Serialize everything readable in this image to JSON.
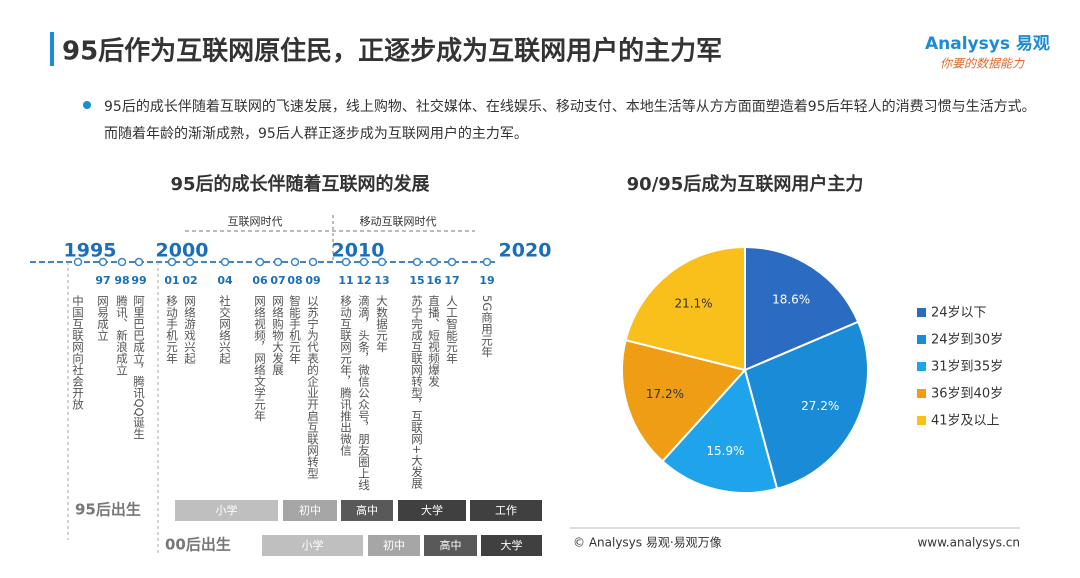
{
  "header": {
    "title": "95后作为互联网原住民，正逐步成为互联网用户的主力军",
    "logo": "Analysys 易观",
    "logo_tagline": "你要的数据能力"
  },
  "bullet": "95后的成长伴随着互联网的飞速发展，线上购物、社交媒体、在线娱乐、移动支付、本地生活等从方方面面塑造着95后年轻人的消费习惯与生活方式。而随着年龄的渐渐成熟，95后人群正逐步成为互联网用户的主力军。",
  "timeline": {
    "title": "95后的成长伴随着互联网的发展",
    "eras": [
      "互联网时代",
      "移动互联网时代"
    ],
    "years": [
      "1995",
      "2000",
      "2010",
      "2020"
    ],
    "events": [
      {
        "year": null,
        "text": "中国互联网向社会开放"
      },
      {
        "year": "97",
        "text": "网易成立"
      },
      {
        "year": "98",
        "text": "腾讯、新浪成立"
      },
      {
        "year": "99",
        "text": "阿里巴巴成立，腾讯QQ诞生"
      },
      {
        "year": "01",
        "text": "移动手机元年"
      },
      {
        "year": "02",
        "text": "网络游戏兴起"
      },
      {
        "year": "04",
        "text": "社交网络兴起"
      },
      {
        "year": "06",
        "text": "网络视频，网络文学元年"
      },
      {
        "year": "07",
        "text": "网络购物大发展"
      },
      {
        "year": "08",
        "text": "智能手机元年"
      },
      {
        "year": "09",
        "text": "以苏宁为代表的企业开启互联网转型"
      },
      {
        "year": "11",
        "text": "移动互联网元年，腾讯推出微信"
      },
      {
        "year": "12",
        "text": "滴滴，头条，微信公众号，朋友圈上线"
      },
      {
        "year": "13",
        "text": "大数据元年"
      },
      {
        "year": "15",
        "text": "苏宁完成互联网转型，互联网+大发展"
      },
      {
        "year": "16",
        "text": "直播、短视频爆发"
      },
      {
        "year": "17",
        "text": "人工智能元年"
      },
      {
        "year": "19",
        "text": "5G商用元年"
      }
    ],
    "stages": [
      {
        "label": "95后出生",
        "items": [
          "小学",
          "初中",
          "高中",
          "大学",
          "工作"
        ]
      },
      {
        "label": "00后出生",
        "items": [
          "小学",
          "初中",
          "高中",
          "大学"
        ]
      }
    ]
  },
  "chart_data": {
    "type": "pie",
    "title": "90/95后成为互联网用户主力",
    "categories": [
      "24岁以下",
      "24岁到30岁",
      "31岁到35岁",
      "36岁到40岁",
      "41岁及以上"
    ],
    "values": [
      18.6,
      27.2,
      15.9,
      17.2,
      21.1
    ],
    "value_labels": [
      "18.6%",
      "27.2%",
      "15.9%",
      "17.2%",
      "21.1%"
    ],
    "colors": [
      "#2b6bc2",
      "#1a8bd6",
      "#1fa3ea",
      "#f09d16",
      "#f9bf1b"
    ]
  },
  "footer": {
    "copyright": "© Analysys 易观·易观万像",
    "url": "www.analysys.cn"
  }
}
